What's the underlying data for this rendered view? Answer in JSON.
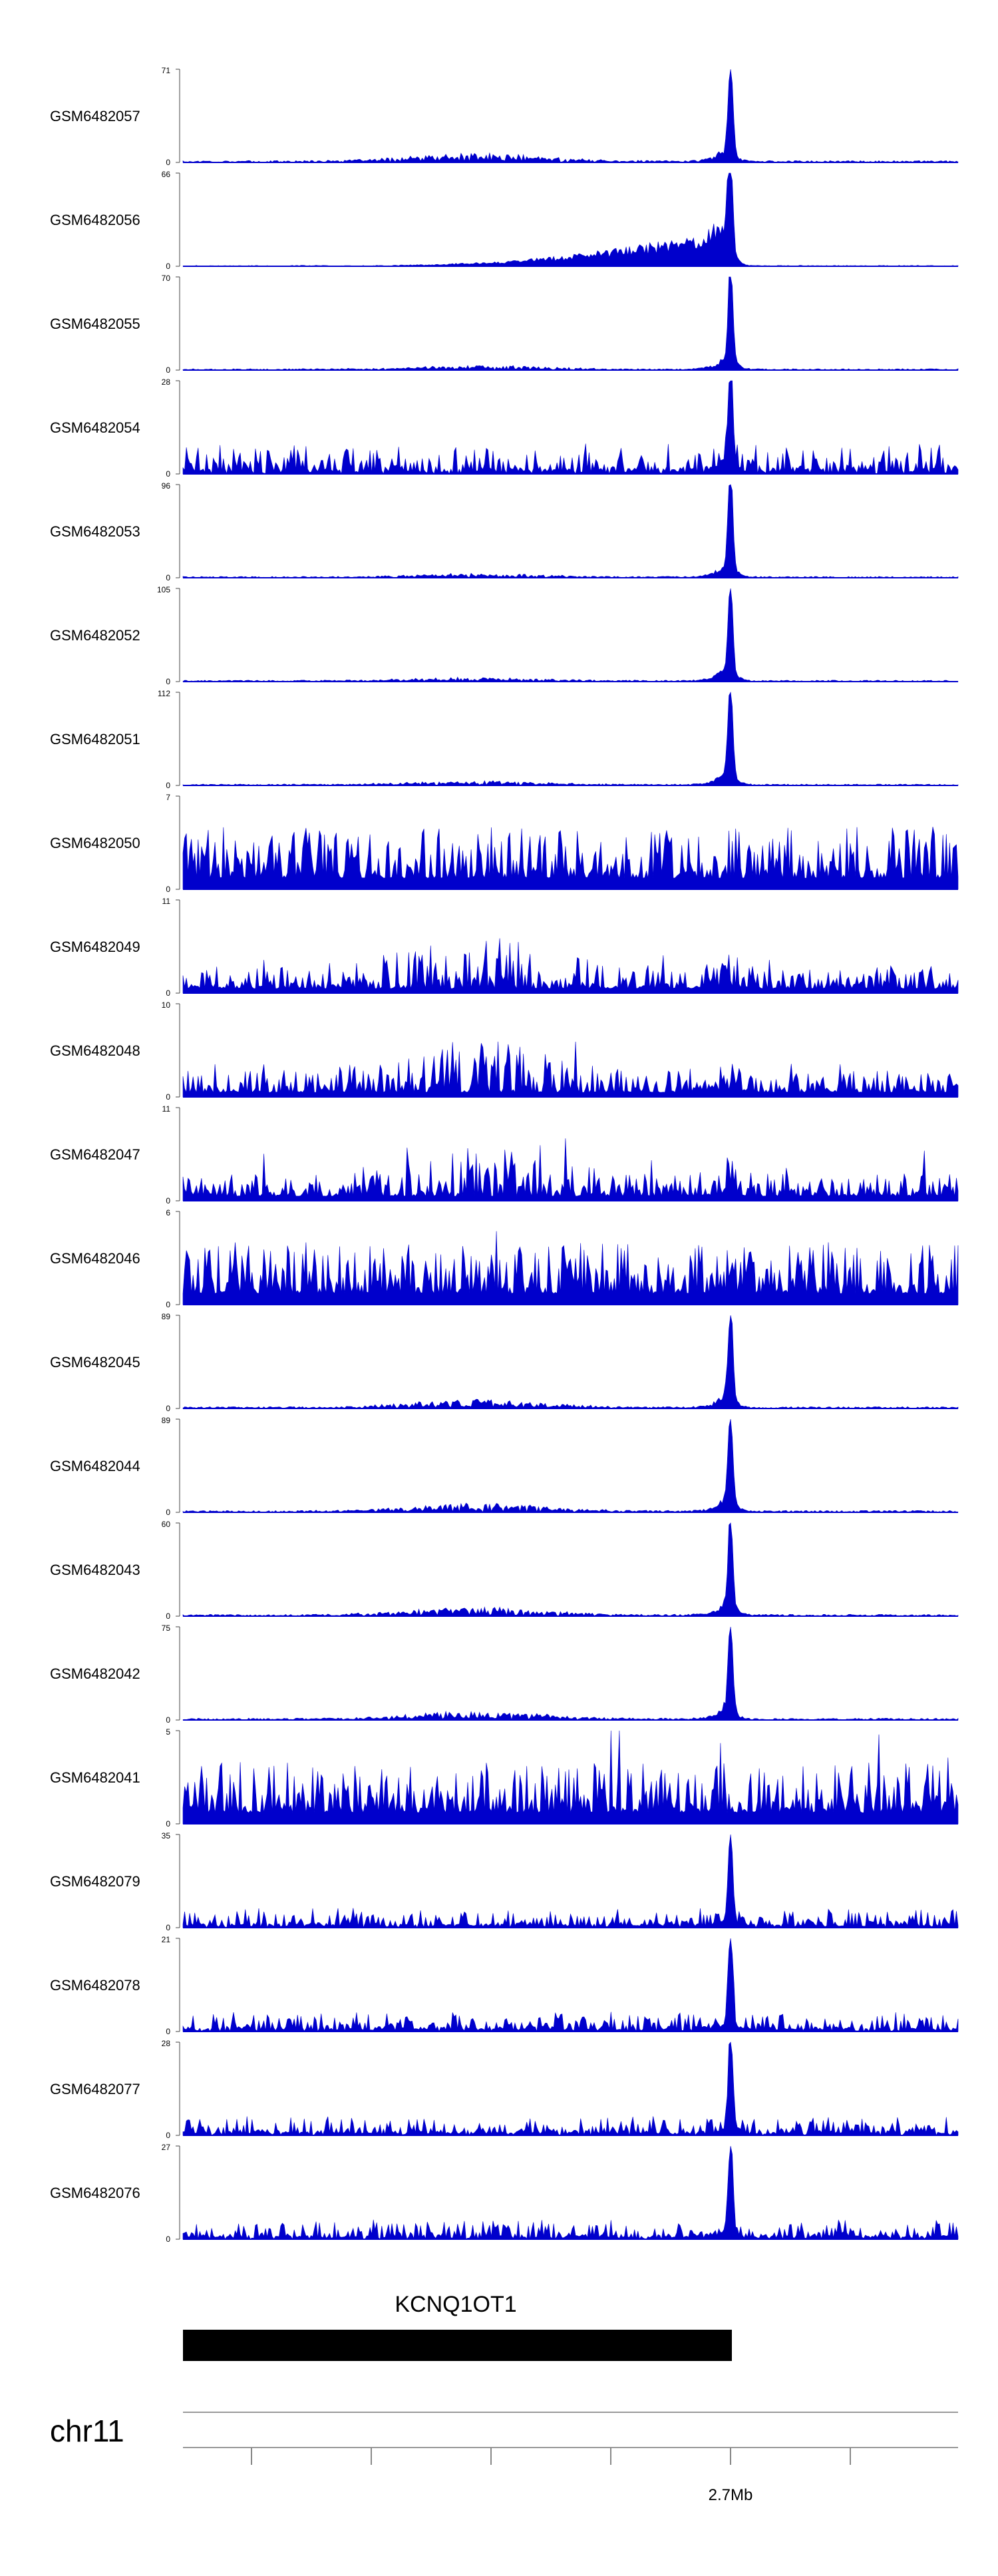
{
  "chart_data": {
    "type": "area",
    "color": "#0000cc",
    "x_tick_label": "2.7Mb",
    "chromosome": "chr11",
    "gene": {
      "name": "KCNQ1OT1"
    },
    "tracks": [
      {
        "name": "GSM6482057",
        "max": 71,
        "profile": "peak_hump"
      },
      {
        "name": "GSM6482056",
        "max": 66,
        "profile": "ramp"
      },
      {
        "name": "GSM6482055",
        "max": 70,
        "profile": "peak_low"
      },
      {
        "name": "GSM6482054",
        "max": 28,
        "profile": "peak_noise"
      },
      {
        "name": "GSM6482053",
        "max": 96,
        "profile": "peak_low"
      },
      {
        "name": "GSM6482052",
        "max": 105,
        "profile": "peak_low"
      },
      {
        "name": "GSM6482051",
        "max": 112,
        "profile": "peak_low"
      },
      {
        "name": "GSM6482050",
        "max": 7,
        "profile": "noise"
      },
      {
        "name": "GSM6482049",
        "max": 11,
        "profile": "noise_bump"
      },
      {
        "name": "GSM6482048",
        "max": 10,
        "profile": "noise_bump"
      },
      {
        "name": "GSM6482047",
        "max": 11,
        "profile": "noise_bump"
      },
      {
        "name": "GSM6482046",
        "max": 6,
        "profile": "noise"
      },
      {
        "name": "GSM6482045",
        "max": 89,
        "profile": "peak_hump"
      },
      {
        "name": "GSM6482044",
        "max": 89,
        "profile": "peak_hump"
      },
      {
        "name": "GSM6482043",
        "max": 60,
        "profile": "peak_hump"
      },
      {
        "name": "GSM6482042",
        "max": 75,
        "profile": "peak_hump"
      },
      {
        "name": "GSM6482041",
        "max": 5,
        "profile": "noise"
      },
      {
        "name": "GSM6482079",
        "max": 35,
        "profile": "spike_noise"
      },
      {
        "name": "GSM6482078",
        "max": 21,
        "profile": "spike_noise"
      },
      {
        "name": "GSM6482077",
        "max": 28,
        "profile": "spike_noise"
      },
      {
        "name": "GSM6482076",
        "max": 27,
        "profile": "spike_noise"
      }
    ]
  }
}
